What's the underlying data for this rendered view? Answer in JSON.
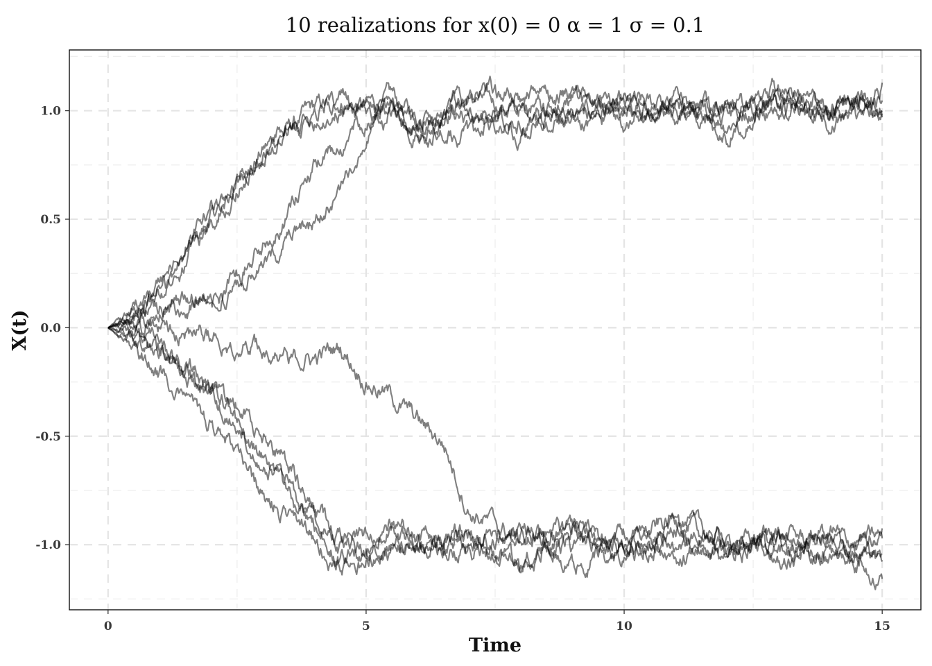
{
  "chart_data": {
    "type": "line",
    "title": "10 realizations for  x(0) = 0 α = 1 σ = 0.1",
    "xlabel": "Time",
    "ylabel": "X(t)",
    "xlim": [
      -0.75,
      15.75
    ],
    "ylim": [
      -1.3,
      1.28
    ],
    "x_ticks": [
      0,
      5,
      10,
      15
    ],
    "x_tick_labels": [
      "0",
      "5",
      "10",
      "15"
    ],
    "y_ticks": [
      -1.0,
      -0.5,
      0.0,
      0.5,
      1.0
    ],
    "y_tick_labels": [
      "-1.0",
      "-0.5",
      "0.0",
      "0.5",
      "1.0"
    ],
    "grid": true,
    "legend": "none",
    "line_color": "#000000",
    "line_opacity": 0.5,
    "series": [
      {
        "x": [
          0,
          0.5,
          1,
          1.5,
          2,
          2.5,
          3,
          3.5,
          4,
          4.5,
          5,
          5.5,
          6,
          7,
          8,
          9,
          10,
          11,
          12,
          13,
          14,
          15
        ],
        "values": [
          0,
          0.07,
          0.18,
          0.33,
          0.5,
          0.67,
          0.82,
          0.92,
          1.01,
          1.04,
          1.02,
          1.06,
          0.96,
          1.06,
          1.0,
          0.97,
          1.02,
          1.02,
          0.95,
          1.07,
          1.0,
          1.09
        ]
      },
      {
        "x": [
          0,
          0.5,
          1,
          1.5,
          2,
          2.5,
          3,
          3.5,
          4,
          4.5,
          5,
          5.5,
          6,
          7,
          8,
          9,
          10,
          11,
          12,
          13,
          14,
          15
        ],
        "values": [
          0,
          0.05,
          0.15,
          0.3,
          0.48,
          0.64,
          0.8,
          0.93,
          1.02,
          1.05,
          1.0,
          0.99,
          0.92,
          0.97,
          0.93,
          1.05,
          1.0,
          0.98,
          1.03,
          0.99,
          1.04,
          1.06
        ]
      },
      {
        "x": [
          0,
          0.5,
          1,
          1.5,
          2,
          2.5,
          3,
          3.5,
          4,
          4.5,
          5,
          5.5,
          6,
          7,
          8,
          9,
          10,
          11,
          12,
          13,
          14,
          15
        ],
        "values": [
          0,
          0.06,
          0.2,
          0.37,
          0.53,
          0.67,
          0.8,
          0.89,
          0.97,
          1.0,
          1.03,
          1.01,
          0.89,
          1.1,
          1.05,
          0.95,
          1.0,
          1.06,
          0.89,
          1.08,
          0.98,
          1.1
        ]
      },
      {
        "x": [
          0,
          0.5,
          1,
          1.5,
          2,
          2.5,
          3,
          3.5,
          4,
          4.5,
          5,
          5.5,
          6,
          7,
          8,
          9,
          10,
          11,
          12,
          13,
          14,
          15
        ],
        "values": [
          0,
          0.05,
          0.1,
          0.13,
          0.18,
          0.25,
          0.38,
          0.54,
          0.72,
          0.86,
          0.96,
          1.02,
          0.94,
          1.02,
          0.9,
          0.99,
          1.03,
          0.98,
          1.01,
          1.04,
          0.99,
          0.96
        ]
      },
      {
        "x": [
          0,
          0.5,
          1,
          1.5,
          2,
          2.5,
          3,
          3.5,
          4,
          4.5,
          5,
          5.5,
          6,
          7,
          8,
          9,
          10,
          11,
          12,
          13,
          14,
          15
        ],
        "values": [
          0,
          0.03,
          0.07,
          0.1,
          0.13,
          0.18,
          0.27,
          0.4,
          0.47,
          0.61,
          0.92,
          0.98,
          0.9,
          0.88,
          1.05,
          1.08,
          0.96,
          1.04,
          0.96,
          1.1,
          0.96,
          1.02
        ]
      },
      {
        "x": [
          0,
          0.5,
          1,
          1.5,
          2,
          2.5,
          3,
          3.5,
          4,
          4.5,
          5,
          5.5,
          6,
          6.5,
          7,
          8,
          9,
          10,
          11,
          12,
          13,
          14,
          15
        ],
        "values": [
          0,
          0.03,
          0.01,
          0.0,
          -0.04,
          -0.07,
          -0.09,
          -0.14,
          -0.14,
          -0.09,
          -0.24,
          -0.32,
          -0.43,
          -0.53,
          -0.84,
          -0.98,
          -0.92,
          -1.01,
          -0.88,
          -1.0,
          -0.95,
          -0.99,
          -0.97
        ]
      },
      {
        "x": [
          0,
          0.5,
          1,
          1.5,
          2,
          2.5,
          3,
          3.5,
          4,
          4.5,
          5,
          5.5,
          6,
          7,
          8,
          9,
          10,
          11,
          12,
          13,
          14,
          15
        ],
        "values": [
          0,
          -0.05,
          -0.1,
          -0.18,
          -0.3,
          -0.36,
          -0.5,
          -0.63,
          -0.85,
          -0.98,
          -1.05,
          -1.0,
          -1.04,
          -0.97,
          -1.08,
          -0.96,
          -0.99,
          -1.04,
          -1.0,
          -1.06,
          -0.95,
          -1.08
        ]
      },
      {
        "x": [
          0,
          0.5,
          1,
          1.5,
          2,
          2.5,
          3,
          3.5,
          4,
          4.5,
          5,
          5.5,
          6,
          7,
          8,
          9,
          10,
          11,
          12,
          13,
          14,
          15
        ],
        "values": [
          0,
          -0.06,
          -0.12,
          -0.22,
          -0.32,
          -0.45,
          -0.6,
          -0.77,
          -0.93,
          -1.01,
          -0.95,
          -0.93,
          -0.97,
          -1.02,
          -0.94,
          -1.03,
          -0.95,
          -0.99,
          -1.05,
          -0.97,
          -1.02,
          -0.95
        ]
      },
      {
        "x": [
          0,
          0.5,
          1,
          1.5,
          2,
          2.5,
          3,
          3.5,
          4,
          4.5,
          5,
          5.5,
          6,
          7,
          8,
          9,
          10,
          11,
          12,
          13,
          14,
          15
        ],
        "values": [
          0,
          -0.03,
          -0.08,
          -0.17,
          -0.26,
          -0.44,
          -0.58,
          -0.73,
          -0.89,
          -1.06,
          -1.02,
          -0.88,
          -0.98,
          -0.96,
          -1.12,
          -0.89,
          -1.08,
          -0.92,
          -0.98,
          -1.03,
          -0.97,
          -1.07
        ]
      },
      {
        "x": [
          0,
          0.5,
          1,
          1.5,
          2,
          2.5,
          3,
          3.5,
          4,
          4.5,
          5,
          5.5,
          6,
          7,
          8,
          9,
          10,
          11,
          12,
          13,
          14,
          15
        ],
        "values": [
          0,
          -0.1,
          -0.2,
          -0.32,
          -0.43,
          -0.6,
          -0.78,
          -0.86,
          -0.98,
          -1.1,
          -1.07,
          -1.03,
          -0.99,
          -1.0,
          -0.93,
          -1.1,
          -1.0,
          -0.94,
          -1.02,
          -1.0,
          -1.05,
          -1.12
        ]
      }
    ]
  }
}
